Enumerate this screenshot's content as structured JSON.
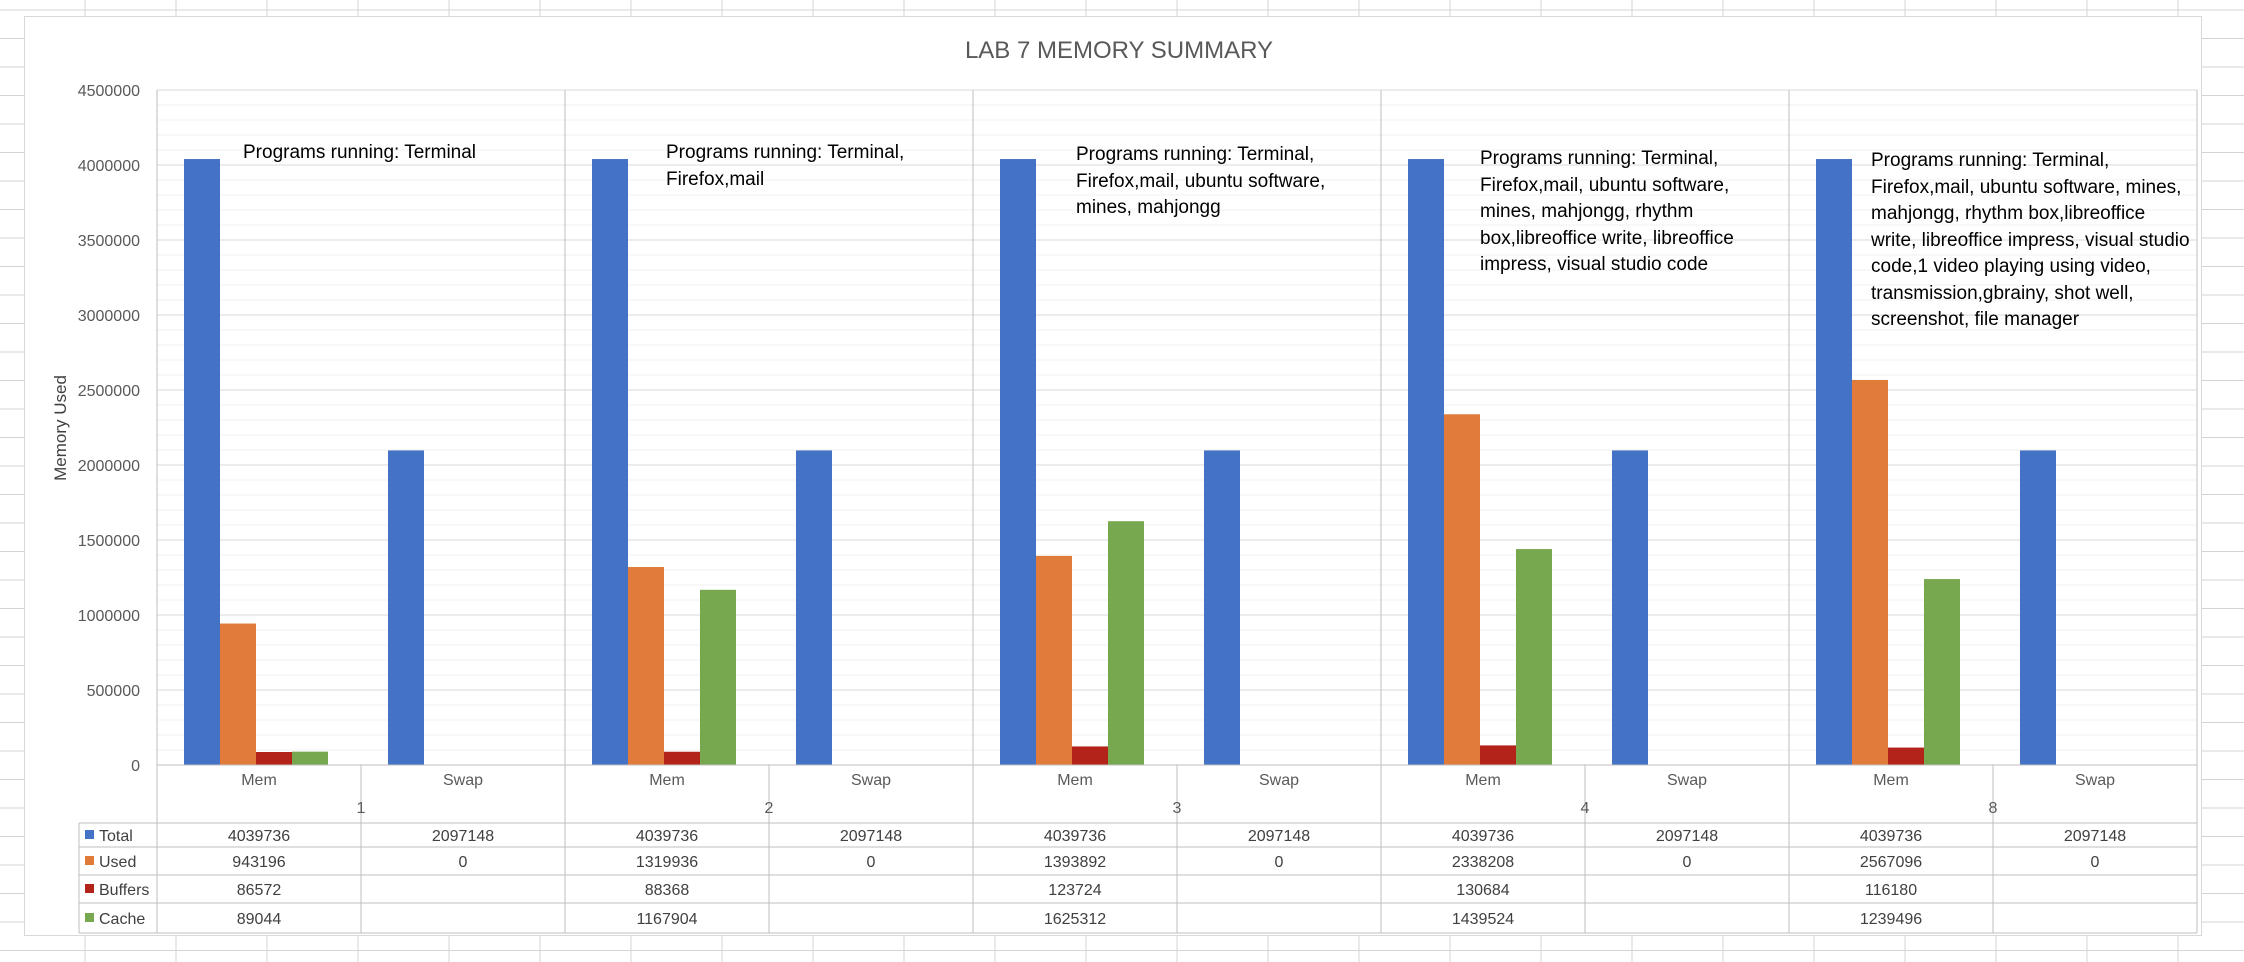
{
  "chart_data": {
    "type": "bar",
    "title": "LAB 7 MEMORY SUMMARY",
    "ylabel": "Memory Used",
    "xlabel": "",
    "ylim": [
      0,
      4500000
    ],
    "yticks": [
      0,
      500000,
      1000000,
      1500000,
      2000000,
      2500000,
      3000000,
      3500000,
      4000000,
      4500000
    ],
    "grid": "on",
    "legend": "data-table",
    "groups": [
      "1",
      "2",
      "3",
      "4",
      "8"
    ],
    "subcategories": [
      "Mem",
      "Swap"
    ],
    "categories": [
      "1 Mem",
      "1 Swap",
      "2 Mem",
      "2 Swap",
      "3 Mem",
      "3 Swap",
      "4 Mem",
      "4 Swap",
      "8 Mem",
      "8 Swap"
    ],
    "series": [
      {
        "name": "Total",
        "color": "#4472c4",
        "values": [
          4039736,
          2097148,
          4039736,
          2097148,
          4039736,
          2097148,
          4039736,
          2097148,
          4039736,
          2097148
        ]
      },
      {
        "name": "Used",
        "color": "#e07b39",
        "values": [
          943196,
          0,
          1319936,
          0,
          1393892,
          0,
          2338208,
          0,
          2567096,
          0
        ]
      },
      {
        "name": "Buffers",
        "color": "#b4231a",
        "values": [
          86572,
          null,
          88368,
          null,
          123724,
          null,
          130684,
          null,
          116180,
          null
        ]
      },
      {
        "name": "Cache",
        "color": "#77a84f",
        "values": [
          89044,
          null,
          1167904,
          null,
          1625312,
          null,
          1439524,
          null,
          1239496,
          null
        ]
      }
    ],
    "annotations": [
      "Programs running: Terminal",
      "Programs running: Terminal, Firefox,mail",
      "Programs running: Terminal, Firefox,mail, ubuntu software, mines, mahjongg",
      "Programs running: Terminal, Firefox,mail, ubuntu software, mines, mahjongg, rhythm box,libreoffice write, libreoffice impress, visual studio code",
      "Programs running: Terminal, Firefox,mail, ubuntu software, mines, mahjongg, rhythm box,libreoffice write, libreoffice impress, visual studio code,1 video playing using video, transmission,gbrainy, shot well, screenshot, file manager"
    ]
  }
}
